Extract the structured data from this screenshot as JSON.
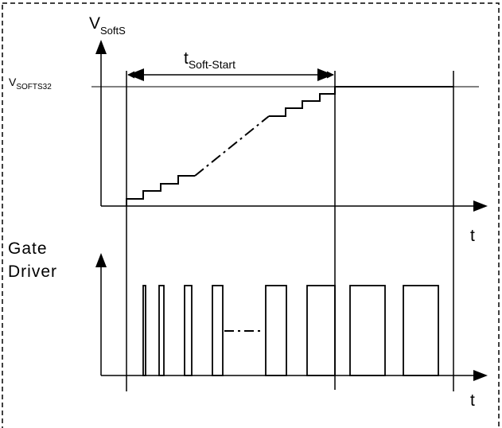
{
  "labels": {
    "v_main": "V",
    "v_sub": "SoftS",
    "t_main": "t",
    "t_sub": "Soft-Start",
    "level_main": "V",
    "level_sub": "SOFTS32",
    "t_axis_top": "t",
    "gate_line1": "Gate",
    "gate_line2": "Driver",
    "t_axis_bottom": "t"
  },
  "colors": {
    "stroke": "#000000",
    "background": "#ffffff"
  }
}
